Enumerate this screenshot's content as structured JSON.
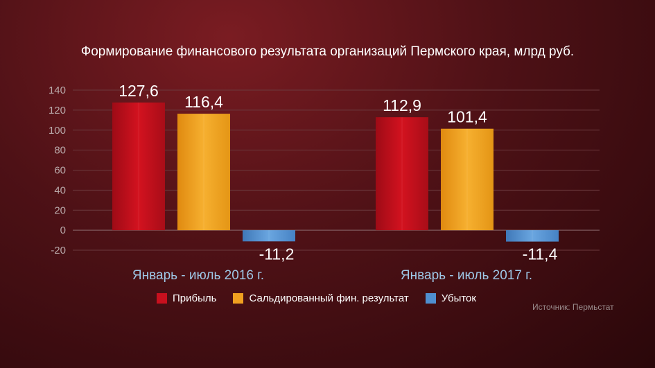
{
  "chart_data": {
    "type": "bar",
    "title": "Формирование финансового результата организаций Пермского края, млрд руб.",
    "categories": [
      "Январь - июль 2016 г.",
      "Январь - июль 2017 г."
    ],
    "series": [
      {
        "name": "Прибыль",
        "values": [
          127.6,
          112.9
        ],
        "labels": [
          "127,6",
          "112,9"
        ],
        "color": "#c8101e"
      },
      {
        "name": "Сальдированный фин. результат",
        "values": [
          116.4,
          101.4
        ],
        "labels": [
          "116,4",
          "101,4"
        ],
        "color": "#f0a020"
      },
      {
        "name": "Убыток",
        "values": [
          -11.2,
          -11.4
        ],
        "labels": [
          "-11,2",
          "-11,4"
        ],
        "color": "#4f8fd0"
      }
    ],
    "ylim": [
      -20,
      140
    ],
    "yticks": [
      "-20",
      "0",
      "20",
      "40",
      "60",
      "80",
      "100",
      "120",
      "140"
    ],
    "grid": true,
    "legend": "bottom"
  },
  "source": "Источник: Пермьстат"
}
